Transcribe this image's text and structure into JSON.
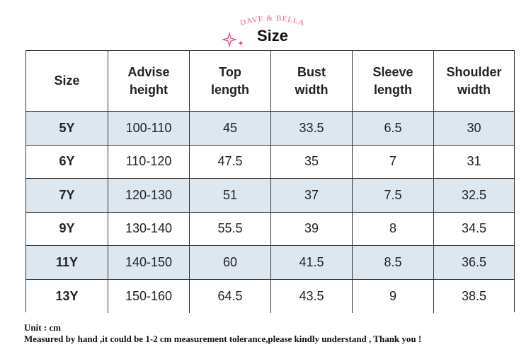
{
  "brand": "DAVE & BELLA",
  "title": "Size",
  "table": {
    "header": [
      [
        "Size"
      ],
      [
        "Advise",
        "height"
      ],
      [
        "Top",
        "length"
      ],
      [
        "Bust",
        "width"
      ],
      [
        "Sleeve",
        "length"
      ],
      [
        "Shoulder",
        "width"
      ]
    ],
    "rows": [
      [
        "5Y",
        "100-110",
        "45",
        "33.5",
        "6.5",
        "30"
      ],
      [
        "6Y",
        "110-120",
        "47.5",
        "35",
        "7",
        "31"
      ],
      [
        "7Y",
        "120-130",
        "51",
        "37",
        "7.5",
        "32.5"
      ],
      [
        "9Y",
        "130-140",
        "55.5",
        "39",
        "8",
        "34.5"
      ],
      [
        "11Y",
        "140-150",
        "60",
        "41.5",
        "8.5",
        "36.5"
      ],
      [
        "13Y",
        "150-160",
        "64.5",
        "43.5",
        "9",
        "38.5"
      ]
    ]
  },
  "notes": [
    "Unit : cm",
    "Measured by hand ,it could be 1-2 cm measurement tolerance,please kindly understand , Thank you !"
  ]
}
